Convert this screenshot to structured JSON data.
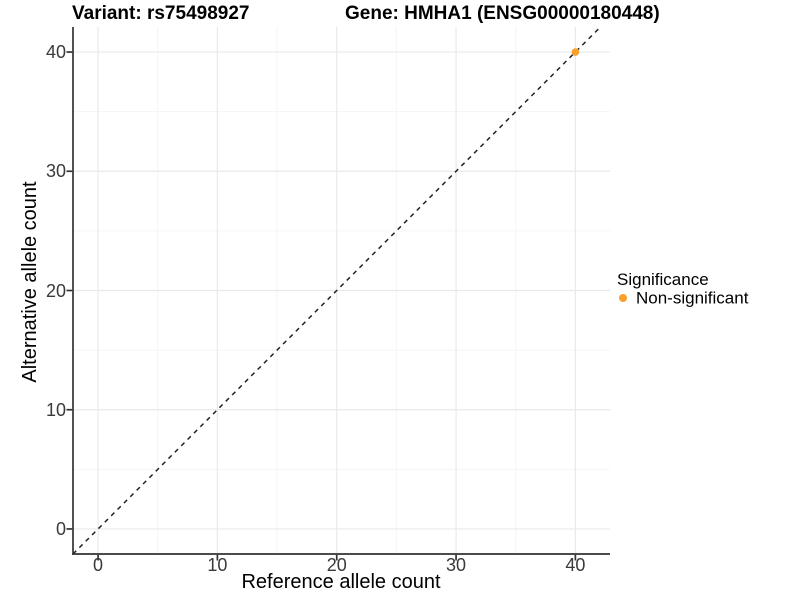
{
  "chart_data": {
    "type": "scatter",
    "title_left": "Variant: rs75498927",
    "title_right": "Gene: HMHA1 (ENSG00000180448)",
    "xlabel": "Reference allele count",
    "ylabel": "Alternative allele count",
    "xlim": [
      -2.1,
      42.9
    ],
    "ylim": [
      -2.1,
      42.1
    ],
    "xticks": [
      0,
      10,
      20,
      30,
      40
    ],
    "yticks": [
      0,
      10,
      20,
      30,
      40
    ],
    "xticks_minor": [
      5,
      15,
      25,
      35
    ],
    "yticks_minor": [
      5,
      15,
      25,
      35
    ],
    "grid": "major and minor gridlines, light gray, white background",
    "reference_line": {
      "equation": "y = x",
      "style": "dashed",
      "color": "#222222"
    },
    "series": [
      {
        "name": "Non-significant",
        "color": "#F9A12B",
        "marker": "circle",
        "points": [
          {
            "x": 40,
            "y": 40
          }
        ]
      }
    ],
    "legend": {
      "position": "right",
      "title": "Significance",
      "items": [
        {
          "label": "Non-significant",
          "color": "#F9A12B",
          "marker": "circle"
        }
      ]
    },
    "colors": {
      "background": "#FFFFFF",
      "axis_line": "#333333",
      "tick_mark": "#333333",
      "tick_label": "#3A3A3A",
      "grid_major": "#E9E9E9",
      "grid_minor": "#F5F5F5",
      "title_text": "#000000"
    }
  }
}
